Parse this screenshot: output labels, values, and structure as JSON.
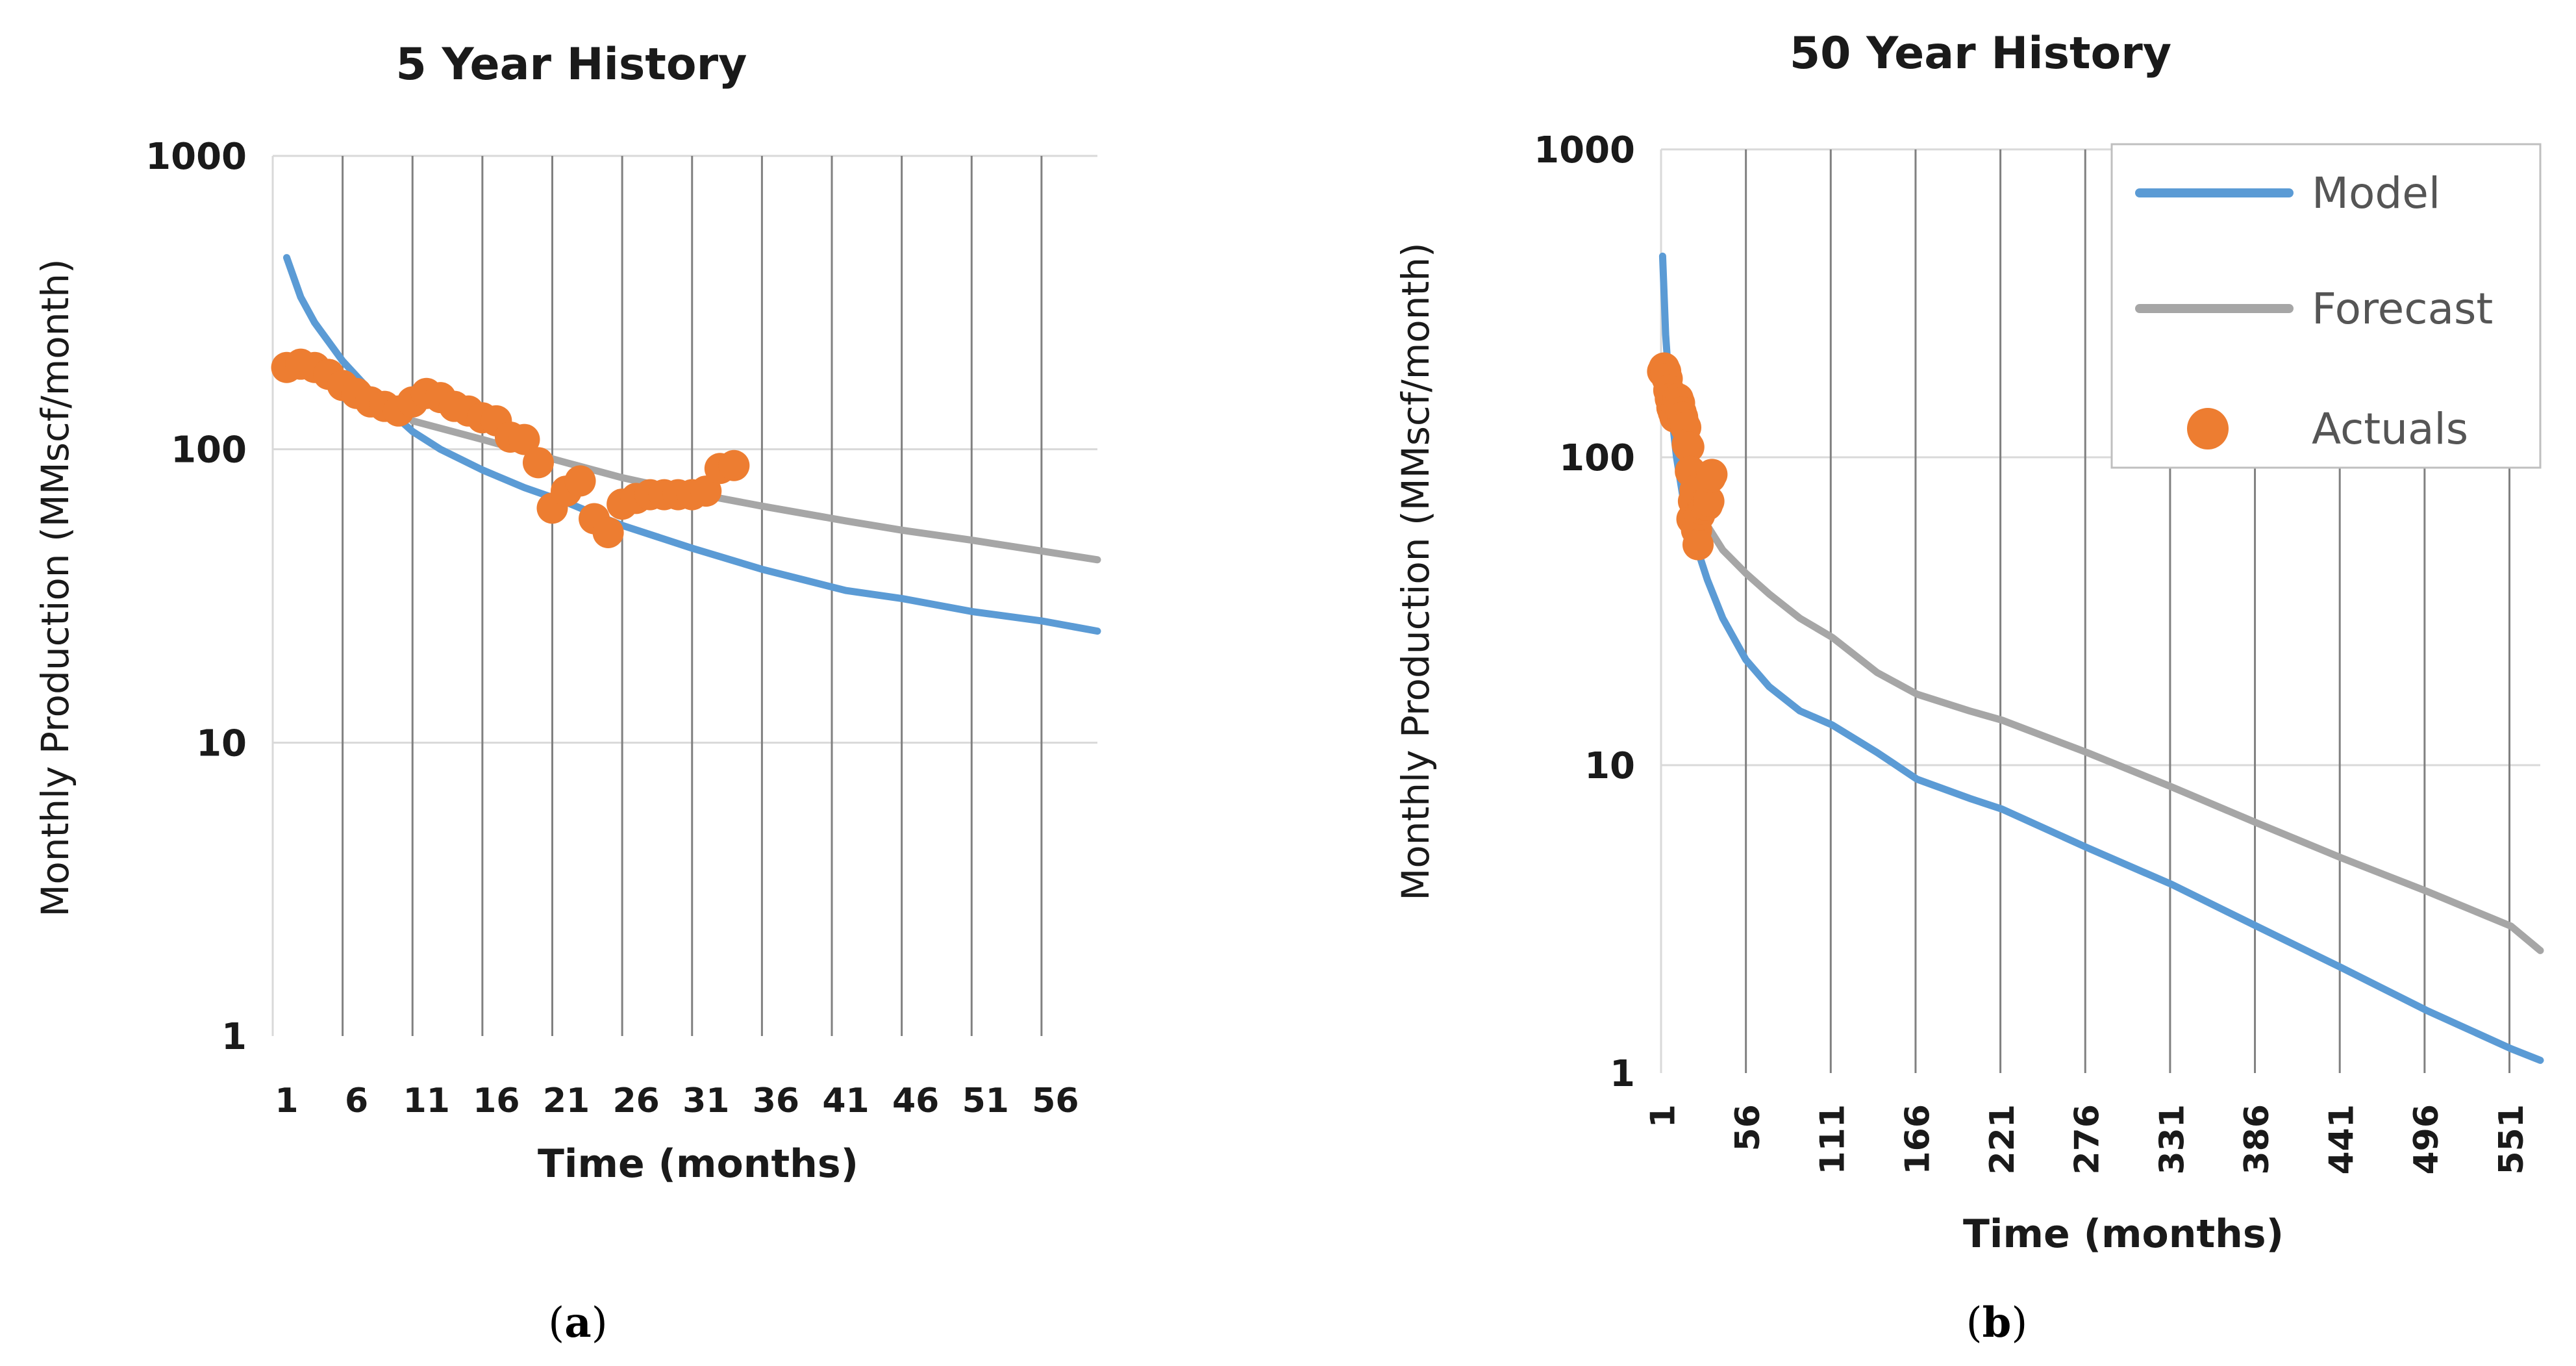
{
  "colors": {
    "model": "#5b9bd5",
    "forecast": "#a6a6a6",
    "actuals": "#ed7d31",
    "grid_h": "#d9d9d9",
    "grid_v": "#808080"
  },
  "captions": [
    {
      "open": "(",
      "letter": "a",
      "close": ")"
    },
    {
      "open": "(",
      "letter": "b",
      "close": ")"
    }
  ],
  "chart_data": [
    {
      "type": "line",
      "title": "5 Year History",
      "xlabel": "Time (months)",
      "ylabel": "Monthly Production (MMscf/month)",
      "yscale": "log",
      "ylim": [
        1,
        1000
      ],
      "xlim": [
        0,
        59
      ],
      "yticks": [
        "1000",
        "100",
        "10",
        "1"
      ],
      "xticks": [
        "1",
        "6",
        "11",
        "16",
        "21",
        "26",
        "31",
        "36",
        "41",
        "46",
        "51",
        "56"
      ],
      "grid": "vertical major lines at every 5th category, light horizontal lines at decades",
      "legend": "none",
      "series": [
        {
          "name": "Model",
          "kind": "line",
          "x": [
            1,
            2,
            3,
            5,
            8,
            10,
            12,
            15,
            18,
            21,
            25,
            30,
            35,
            41,
            45,
            50,
            55,
            59
          ],
          "y": [
            450,
            330,
            270,
            200,
            140,
            115,
            100,
            85,
            74,
            66,
            55,
            46,
            39,
            33,
            31,
            28,
            26,
            24
          ]
        },
        {
          "name": "Forecast",
          "kind": "line",
          "x": [
            10,
            15,
            21,
            25,
            30,
            35,
            41,
            45,
            50,
            55,
            59
          ],
          "y": [
            125,
            108,
            90,
            80,
            71,
            64,
            57,
            53,
            49,
            45,
            42
          ]
        },
        {
          "name": "Actuals",
          "kind": "scatter",
          "x": [
            1,
            2,
            3,
            4,
            5,
            6,
            7,
            8,
            9,
            10,
            11,
            12,
            13,
            14,
            15,
            16,
            17,
            18,
            19,
            20,
            21,
            22,
            23,
            24,
            25,
            26,
            27,
            28,
            29,
            30,
            31,
            32,
            33
          ],
          "y": [
            190,
            195,
            190,
            180,
            165,
            155,
            145,
            140,
            135,
            145,
            155,
            150,
            140,
            135,
            128,
            125,
            110,
            108,
            90,
            63,
            72,
            78,
            58,
            52,
            65,
            68,
            70,
            70,
            70,
            70,
            72,
            86,
            88
          ]
        }
      ]
    },
    {
      "type": "line",
      "title": "50 Year History",
      "xlabel": "Time (months)",
      "ylabel": "Monthly Production (MMscf/month)",
      "yscale": "log",
      "ylim": [
        1,
        1000
      ],
      "xlim": [
        0,
        570
      ],
      "yticks": [
        "1000",
        "100",
        "10",
        "1"
      ],
      "xticks": [
        "1",
        "56",
        "111",
        "166",
        "221",
        "276",
        "331",
        "386",
        "441",
        "496",
        "551"
      ],
      "grid": "vertical major lines at every 55th category, light horizontal lines at decades",
      "legend": "top-right",
      "legend_entries": [
        "Model",
        "Forecast",
        "Actuals"
      ],
      "series": [
        {
          "name": "Model",
          "kind": "line",
          "x": [
            1,
            3,
            6,
            10,
            15,
            21,
            30,
            40,
            55,
            70,
            90,
            111,
            140,
            166,
            200,
            221,
            276,
            331,
            386,
            441,
            496,
            551,
            570
          ],
          "y": [
            450,
            250,
            150,
            100,
            70,
            55,
            40,
            30,
            22,
            18,
            15,
            13.5,
            11,
            9,
            7.8,
            7.2,
            5.4,
            4.1,
            3.0,
            2.2,
            1.6,
            1.2,
            1.1
          ]
        },
        {
          "name": "Forecast",
          "kind": "line",
          "x": [
            21,
            30,
            40,
            55,
            70,
            90,
            111,
            140,
            166,
            200,
            221,
            276,
            331,
            386,
            441,
            496,
            551,
            570
          ],
          "y": [
            72,
            60,
            50,
            42,
            36,
            30,
            26,
            20,
            17,
            15,
            14,
            11,
            8.5,
            6.5,
            5.0,
            3.9,
            3.0,
            2.5
          ]
        },
        {
          "name": "Actuals",
          "kind": "scatter",
          "x": [
            1,
            2,
            3,
            4,
            5,
            6,
            7,
            8,
            9,
            10,
            11,
            12,
            13,
            14,
            15,
            16,
            17,
            18,
            19,
            20,
            21,
            22,
            23,
            24,
            25,
            26,
            27,
            28,
            29,
            30,
            31,
            32,
            33
          ],
          "y": [
            190,
            195,
            190,
            180,
            165,
            155,
            145,
            140,
            135,
            145,
            155,
            150,
            140,
            135,
            128,
            125,
            110,
            108,
            90,
            63,
            72,
            78,
            58,
            52,
            65,
            68,
            70,
            70,
            70,
            70,
            72,
            86,
            88
          ]
        }
      ]
    }
  ]
}
